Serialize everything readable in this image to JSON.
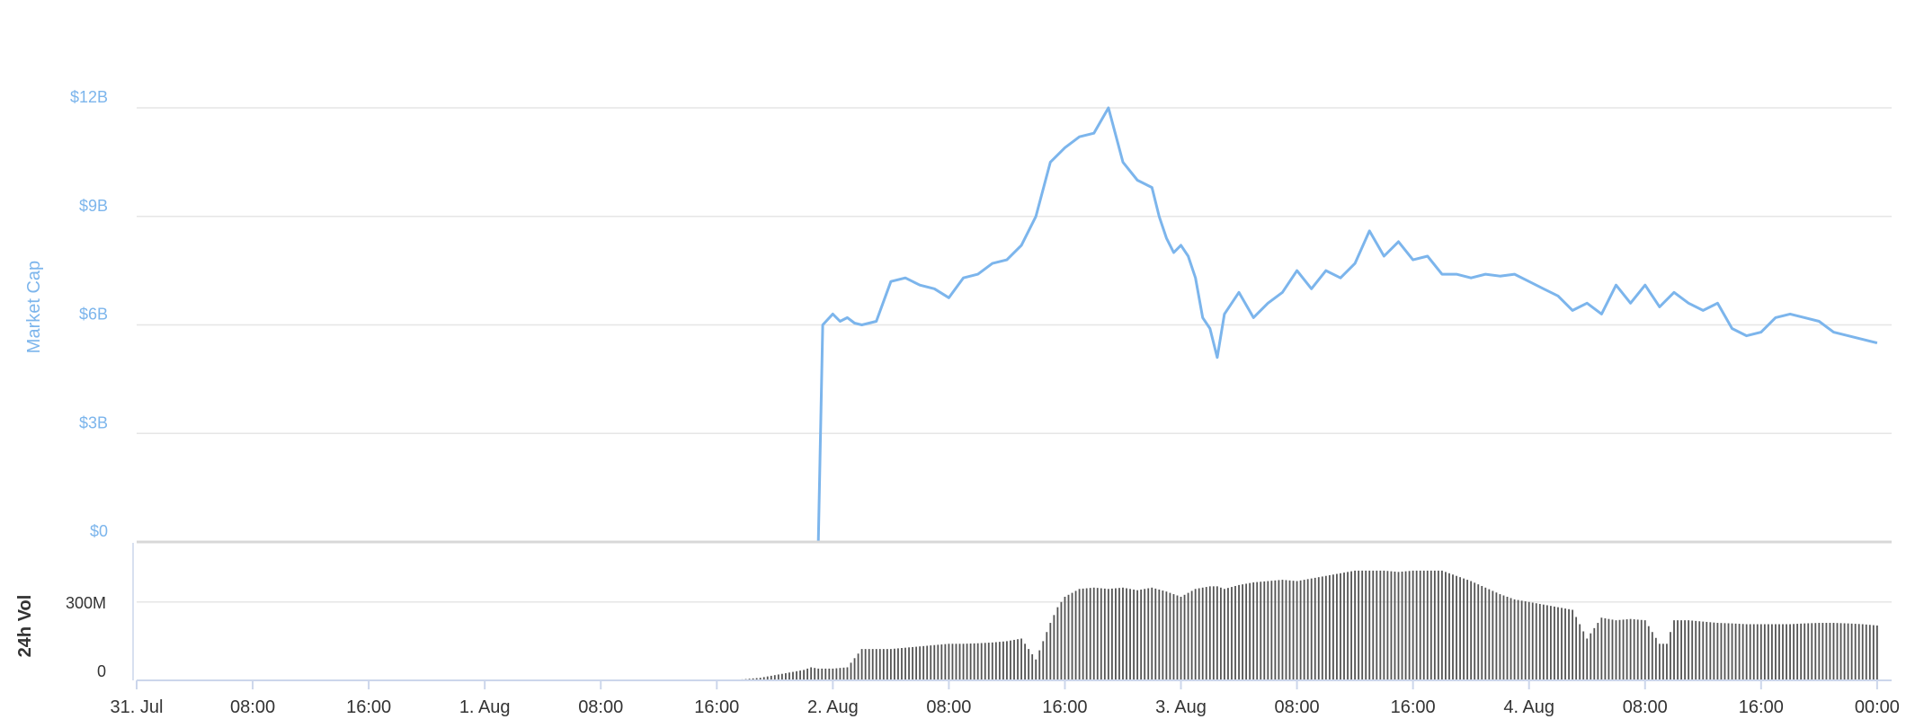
{
  "chart_data": [
    {
      "type": "line",
      "ylabel": "Market Cap",
      "color": "#7cb5ec",
      "grid": true,
      "ylim": [
        0,
        12000000000
      ],
      "y_ticks": [
        "$0",
        "$3B",
        "$6B",
        "$9B",
        "$12B"
      ],
      "x_unit": "hours since 31. Jul 00:00",
      "x_ticks": [
        "31. Jul",
        "08:00",
        "16:00",
        "1. Aug",
        "08:00",
        "16:00",
        "2. Aug",
        "08:00",
        "16:00",
        "3. Aug",
        "08:00",
        "16:00",
        "4. Aug",
        "08:00",
        "16:00",
        "00:00"
      ],
      "series": [
        {
          "x": [
            0,
            47,
            47.3,
            48,
            48.5,
            49,
            49.5,
            50,
            51,
            52,
            53,
            53.5,
            54,
            55,
            56,
            57,
            58,
            59,
            60,
            61,
            62,
            63,
            64,
            65,
            66,
            67,
            68,
            69,
            70,
            70.5,
            71,
            71.5,
            72,
            72.5,
            73,
            73.5,
            74,
            74.5,
            75,
            76,
            77,
            78,
            79,
            80,
            81,
            82,
            83,
            84,
            85,
            86,
            87,
            88,
            89,
            90,
            91,
            92,
            93,
            94,
            95,
            96,
            97,
            98,
            99,
            100,
            101,
            102,
            103,
            104,
            105,
            106,
            107,
            108,
            109,
            110,
            111,
            112,
            113,
            114,
            115,
            116,
            117,
            118,
            119,
            120
          ],
          "values": [
            0,
            0,
            6000000000,
            6300000000,
            6100000000,
            6200000000,
            6050000000,
            6000000000,
            6100000000,
            7200000000,
            7300000000,
            7200000000,
            7100000000,
            7000000000,
            6750000000,
            7300000000,
            7400000000,
            7700000000,
            7800000000,
            8200000000,
            9000000000,
            10500000000,
            10900000000,
            11200000000,
            11300000000,
            12000000000,
            10500000000,
            10000000000,
            9800000000,
            9000000000,
            8400000000,
            8000000000,
            8200000000,
            7900000000,
            7300000000,
            6200000000,
            5900000000,
            5100000000,
            6300000000,
            6900000000,
            6200000000,
            6600000000,
            6900000000,
            7500000000,
            7000000000,
            7500000000,
            7300000000,
            7700000000,
            8600000000,
            7900000000,
            8300000000,
            7800000000,
            7900000000,
            7400000000,
            7400000000,
            7300000000,
            7400000000,
            7350000000,
            7400000000,
            7200000000,
            7000000000,
            6800000000,
            6400000000,
            6600000000,
            6300000000,
            7100000000,
            6600000000,
            7100000000,
            6500000000,
            6900000000,
            6600000000,
            6400000000,
            6600000000,
            5900000000,
            5700000000,
            5800000000,
            6200000000,
            6300000000,
            6200000000,
            6100000000,
            5800000000,
            5700000000,
            5600000000,
            5500000000
          ]
        }
      ]
    },
    {
      "type": "bar",
      "ylabel": "24h Vol",
      "color": "#555555",
      "grid": true,
      "ylim": [
        0,
        430000000
      ],
      "y_ticks": [
        "0",
        "300M"
      ],
      "bar_interval_hours": 0.25,
      "series": [
        {
          "x": [
            0,
            40.9,
            42,
            43,
            44,
            45,
            46,
            46.5,
            47,
            48,
            49,
            50,
            51,
            52,
            53,
            54,
            55,
            56,
            57,
            58,
            59,
            60,
            61,
            62,
            62.5,
            63,
            63.5,
            64,
            65,
            66,
            67,
            68,
            69,
            70,
            71,
            72,
            73,
            74,
            74.5,
            75,
            76,
            77,
            78,
            79,
            80,
            81,
            82,
            83,
            84,
            85,
            86,
            87,
            88,
            89,
            90,
            91,
            92,
            93,
            94,
            95,
            96,
            96.5,
            97,
            98,
            99,
            100,
            101,
            102,
            103,
            104,
            105,
            105.5,
            106,
            107,
            108,
            109,
            110,
            111,
            112,
            113,
            114,
            115,
            116,
            117,
            118,
            119,
            120
          ],
          "values": [
            0,
            0,
            5000000,
            10000000,
            20000000,
            30000000,
            40000000,
            50000000,
            45000000,
            45000000,
            50000000,
            120000000,
            120000000,
            120000000,
            125000000,
            130000000,
            135000000,
            140000000,
            140000000,
            142000000,
            145000000,
            150000000,
            160000000,
            80000000,
            150000000,
            220000000,
            280000000,
            320000000,
            350000000,
            355000000,
            350000000,
            355000000,
            345000000,
            355000000,
            340000000,
            320000000,
            350000000,
            360000000,
            360000000,
            350000000,
            365000000,
            375000000,
            380000000,
            385000000,
            380000000,
            390000000,
            400000000,
            410000000,
            420000000,
            420000000,
            420000000,
            415000000,
            420000000,
            420000000,
            420000000,
            400000000,
            380000000,
            355000000,
            330000000,
            310000000,
            300000000,
            295000000,
            290000000,
            280000000,
            270000000,
            160000000,
            240000000,
            230000000,
            235000000,
            230000000,
            140000000,
            140000000,
            230000000,
            230000000,
            225000000,
            220000000,
            218000000,
            215000000,
            215000000,
            215000000,
            215000000,
            218000000,
            220000000,
            220000000,
            218000000,
            215000000,
            210000000
          ]
        }
      ]
    }
  ]
}
